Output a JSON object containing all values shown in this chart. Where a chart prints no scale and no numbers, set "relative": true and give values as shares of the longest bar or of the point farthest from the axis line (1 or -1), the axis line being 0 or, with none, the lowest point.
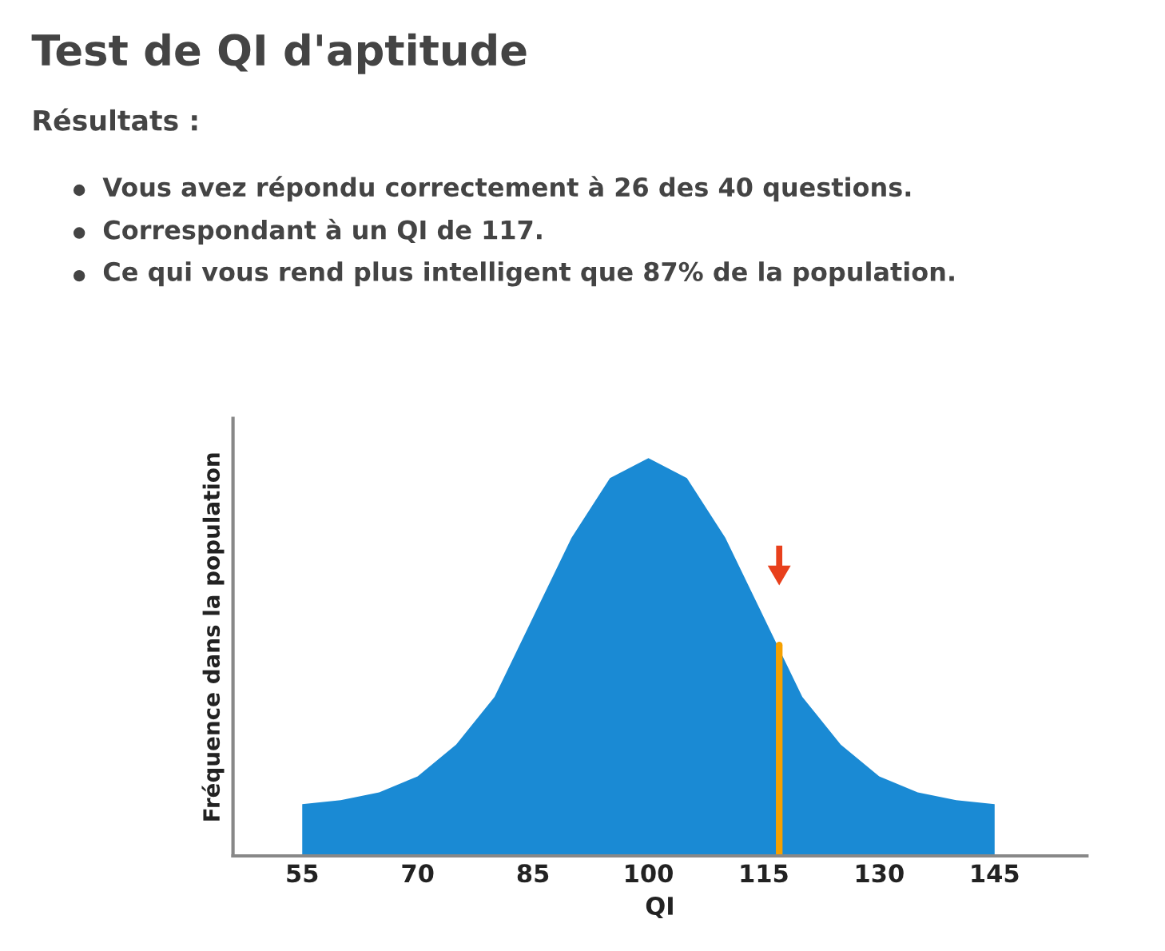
{
  "chart_data": {
    "type": "area",
    "title": "Test de QI d'aptitude",
    "subtitle": "Résultats :",
    "annotations": [
      "Vous avez répondu correctement à 26 des 40 questions.",
      "Correspondant à un QI de 117.",
      "Ce qui vous rend plus intelligent que 87% de la population."
    ],
    "xlabel": "QI",
    "ylabel": "Fréquence dans la population",
    "relative": true,
    "x": [
      55,
      60,
      65,
      70,
      75,
      80,
      85,
      90,
      95,
      100,
      105,
      110,
      115,
      120,
      125,
      130,
      135,
      140,
      145
    ],
    "series": [
      {
        "color": "#1a8ad4",
        "values": [
          0.13,
          0.14,
          0.16,
          0.2,
          0.28,
          0.4,
          0.6,
          0.8,
          0.95,
          1,
          0.95,
          0.8,
          0.6,
          0.4,
          0.28,
          0.2,
          0.16,
          0.14,
          0.13
        ]
      }
    ],
    "xlim": [
      46,
      157
    ],
    "xticks": [
      55,
      70,
      85,
      100,
      115,
      130,
      145
    ],
    "tick_labels": "x",
    "ref_lines": [
      {
        "axis": "x",
        "value": 117,
        "color": "#f5a000"
      }
    ]
  }
}
